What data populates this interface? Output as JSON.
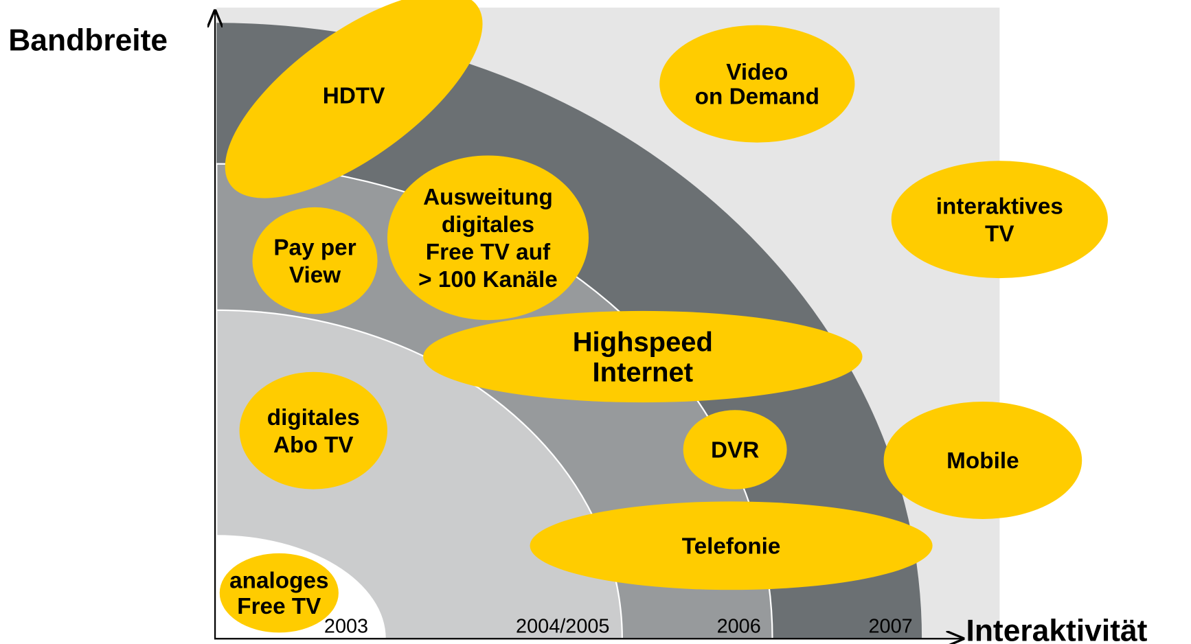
{
  "axes": {
    "y_label": "Bandbreite",
    "x_label": "Interaktivität"
  },
  "periods": [
    "2003",
    "2004/2005",
    "2006",
    "2007"
  ],
  "nodes": [
    {
      "lines": [
        "HDTV"
      ]
    },
    {
      "lines": [
        "Video",
        "on Demand"
      ]
    },
    {
      "lines": [
        "interaktives",
        "TV"
      ]
    },
    {
      "lines": [
        "Pay per",
        "View"
      ]
    },
    {
      "lines": [
        "Ausweitung",
        "digitales",
        "Free TV auf",
        "> 100 Kanäle"
      ]
    },
    {
      "lines": [
        "Highspeed",
        "Internet"
      ]
    },
    {
      "lines": [
        "digitales",
        "Abo TV"
      ]
    },
    {
      "lines": [
        "DVR"
      ]
    },
    {
      "lines": [
        "Mobile"
      ]
    },
    {
      "lines": [
        "Telefonie"
      ]
    },
    {
      "lines": [
        "analoges",
        "Free TV"
      ]
    }
  ]
}
